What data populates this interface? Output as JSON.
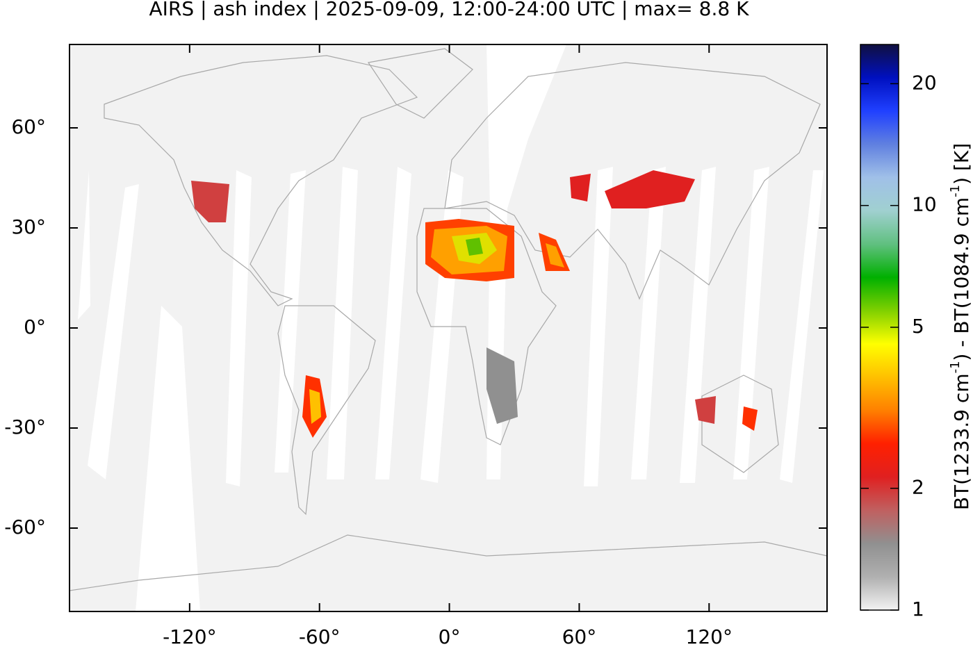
{
  "chart_data": {
    "type": "map",
    "title": "AIRS | ash index | 2025-09-09, 12:00-24:00 UTC | max= 8.8 K",
    "xlim": [
      -175.5,
      174.5
    ],
    "xticks": [
      {
        "value": -120,
        "label": "-120°"
      },
      {
        "value": -60,
        "label": "-60°"
      },
      {
        "value": 0,
        "label": "0°"
      },
      {
        "value": 60,
        "label": "60°"
      },
      {
        "value": 120,
        "label": "120°"
      }
    ],
    "ylim": [
      -85,
      85
    ],
    "yticks": [
      {
        "value": 60,
        "label": "60°"
      },
      {
        "value": 30,
        "label": "30°"
      },
      {
        "value": 0,
        "label": "0°"
      },
      {
        "value": -30,
        "label": "-30°"
      },
      {
        "value": -60,
        "label": "-60°"
      }
    ],
    "colorbar": {
      "label": [
        "BT(1233.9 cm",
        "-1",
        ") - BT(1084.9 cm",
        "-1",
        ") [K]"
      ],
      "lim": [
        1,
        25
      ],
      "ticks": [
        1,
        2,
        5,
        10,
        20
      ],
      "log": true,
      "colormap": [
        "#f2f2f2",
        "#b0b0b0",
        "#909090",
        "#c06060",
        "#e02020",
        "#ff2000",
        "#ff8000",
        "#ffc000",
        "#ffff00",
        "#80d000",
        "#00b000",
        "#60c080",
        "#a0d0d0",
        "#a0c0e8",
        "#6080e0",
        "#2040ff",
        "#0010c0",
        "#101040"
      ]
    }
  }
}
